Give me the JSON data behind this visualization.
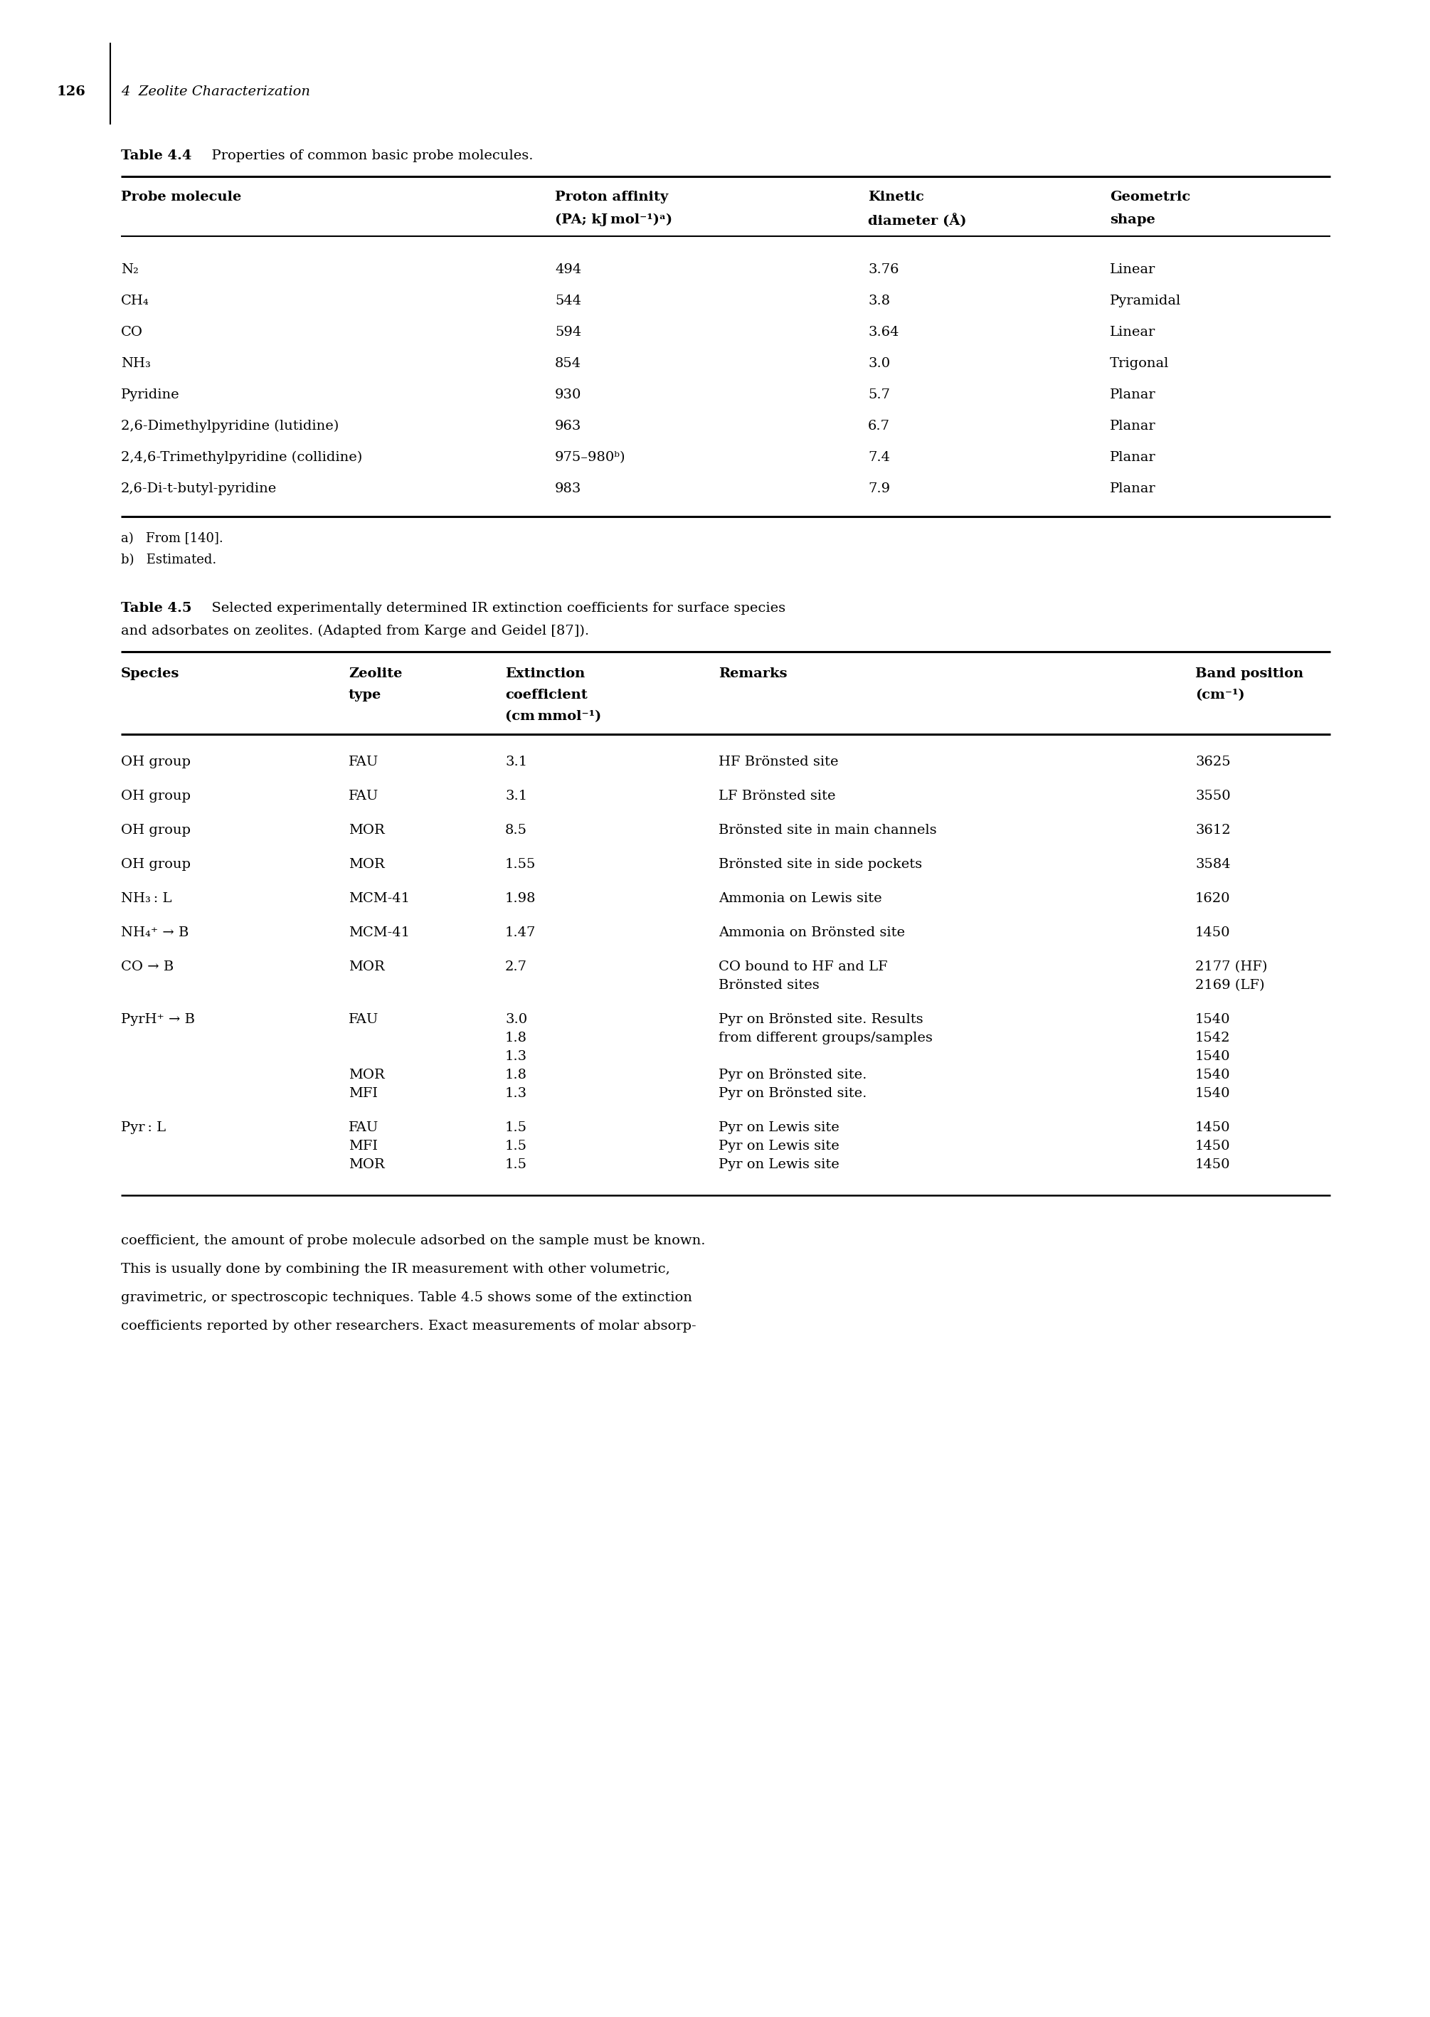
{
  "page_number": "126",
  "chapter_header": "4  Zeolite Characterization",
  "table44_title_bold": "Table 4.4",
  "table44_title_normal": "  Properties of common basic probe molecules.",
  "table44_rows": [
    [
      "N₂",
      "494",
      "3.76",
      "Linear"
    ],
    [
      "CH₄",
      "544",
      "3.8",
      "Pyramidal"
    ],
    [
      "CO",
      "594",
      "3.64",
      "Linear"
    ],
    [
      "NH₃",
      "854",
      "3.0",
      "Trigonal"
    ],
    [
      "Pyridine",
      "930",
      "5.7",
      "Planar"
    ],
    [
      "2,6-Dimethylpyridine (lutidine)",
      "963",
      "6.7",
      "Planar"
    ],
    [
      "2,4,6-Trimethylpyridine (collidine)",
      "975–980ᵇ)",
      "7.4",
      "Planar"
    ],
    [
      "2,6-Di-t-butyl-pyridine",
      "983",
      "7.9",
      "Planar"
    ]
  ],
  "table44_footnotes": [
    "a)   From [140].",
    "b)   Estimated."
  ],
  "table45_title_bold": "Table 4.5",
  "table45_title_normal1": "  Selected experimentally determined IR extinction coefficients for surface species",
  "table45_title_normal2": "and adsorbates on zeolites. (Adapted from Karge and Geidel [87]).",
  "bottom_text_lines": [
    "coefficient, the amount of probe molecule adsorbed on the sample must be known.",
    "This is usually done by combining the IR measurement with other volumetric,",
    "gravimetric, or spectroscopic techniques. Table 4.5 shows some of the extinction",
    "coefficients reported by other researchers. Exact measurements of molar absorp-"
  ],
  "bg_color": "#ffffff"
}
